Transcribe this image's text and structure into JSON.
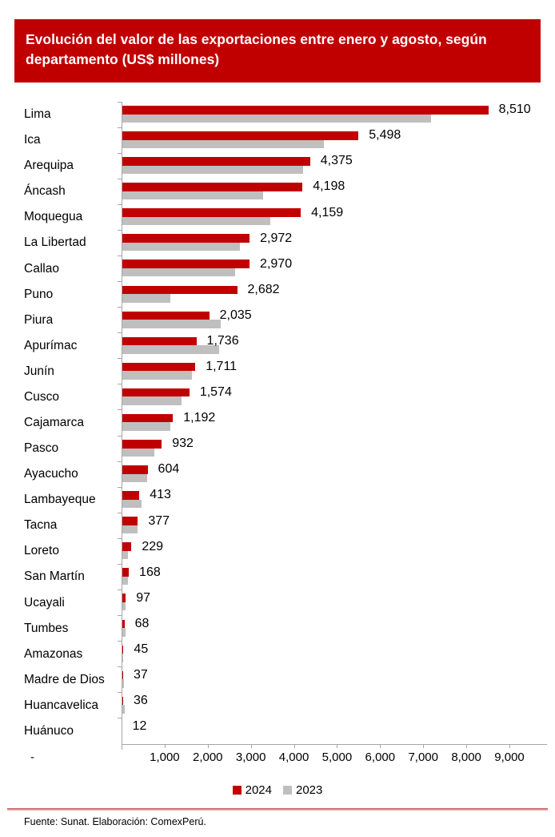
{
  "header": {
    "title": "Evolución del valor de las exportaciones entre enero y agosto, según departamento (US$ millones)"
  },
  "colors": {
    "accent_red": "#C00000",
    "bar_gray": "#BFBFBF",
    "axis_gray": "#A6A6A6",
    "title_text": "#FFFFFF"
  },
  "chart_data": {
    "type": "bar",
    "orientation": "horizontal",
    "title": "Evolución del valor de las exportaciones entre enero y agosto, según departamento (US$ millones)",
    "categories": [
      "Lima",
      "Ica",
      "Arequipa",
      "Áncash",
      "Moquegua",
      "La Libertad",
      "Callao",
      "Puno",
      "Piura",
      "Apurímac",
      "Junín",
      "Cusco",
      "Cajamarca",
      "Pasco",
      "Ayacucho",
      "Lambayeque",
      "Tacna",
      "Loreto",
      "San Martín",
      "Ucayali",
      "Tumbes",
      "Amazonas",
      "Madre de Dios",
      "Huancavelica",
      "Huánuco"
    ],
    "series": [
      {
        "name": "2024",
        "color": "#C00000",
        "values": [
          8510,
          5498,
          4375,
          4198,
          4159,
          2972,
          2970,
          2682,
          2035,
          1736,
          1711,
          1574,
          1192,
          932,
          604,
          413,
          377,
          229,
          168,
          97,
          68,
          45,
          37,
          36,
          12
        ],
        "labels": [
          "8,510",
          "5,498",
          "4,375",
          "4,198",
          "4,159",
          "2,972",
          "2,970",
          "2,682",
          "2,035",
          "1,736",
          "1,711",
          "1,574",
          "1,192",
          "932",
          "604",
          "413",
          "377",
          "229",
          "168",
          "97",
          "68",
          "45",
          "37",
          "36",
          "12"
        ]
      },
      {
        "name": "2023",
        "color": "#BFBFBF",
        "values_estimated_from_bar_lengths": true,
        "values": [
          7190,
          4700,
          4220,
          3290,
          3460,
          2750,
          2640,
          1130,
          2300,
          2270,
          1640,
          1400,
          1140,
          770,
          590,
          470,
          370,
          140,
          150,
          90,
          90,
          40,
          60,
          70,
          10
        ]
      }
    ],
    "xlim": [
      0,
      9000
    ],
    "x_tick_values": [
      0,
      1000,
      2000,
      3000,
      4000,
      5000,
      6000,
      7000,
      8000,
      9000
    ],
    "x_tick_labels": [
      "-",
      "1,000",
      "2,000",
      "3,000",
      "4,000",
      "5,000",
      "6,000",
      "7,000",
      "8,000",
      "9,000"
    ],
    "grid": false,
    "legend_position": "bottom",
    "legend": [
      "2024",
      "2023"
    ]
  },
  "footer": {
    "source": "Fuente: Sunat. Elaboración: ComexPerú."
  }
}
